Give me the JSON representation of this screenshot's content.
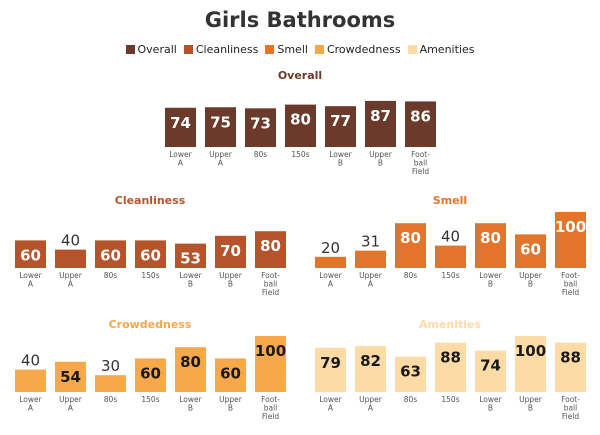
{
  "title": "Girls Bathrooms",
  "legend": [
    {
      "label": "Overall",
      "color": "#6b3a2a"
    },
    {
      "label": "Cleanliness",
      "color": "#b5542a"
    },
    {
      "label": "Smell",
      "color": "#e2752a"
    },
    {
      "label": "Crowdedness",
      "color": "#f6a84b"
    },
    {
      "label": "Amenities",
      "color": "#fddba6"
    }
  ],
  "chart_data": [
    {
      "type": "bar",
      "title": "Overall",
      "title_color": "#6b3a2a",
      "bar_color": "#6b3a2a",
      "label_color": "#ffffff",
      "categories": [
        "Lower A",
        "Upper A",
        "80s",
        "150s",
        "Lower B",
        "Upper B",
        "Football Field"
      ],
      "values": [
        74,
        75,
        73,
        80,
        77,
        87,
        86
      ],
      "ylim": [
        0,
        100
      ]
    },
    {
      "type": "bar",
      "title": "Cleanliness",
      "title_color": "#b5542a",
      "bar_color": "#b5542a",
      "label_color": "#ffffff",
      "categories": [
        "Lower A",
        "Upper A",
        "80s",
        "150s",
        "Lower B",
        "Upper B",
        "Football Field"
      ],
      "values": [
        60,
        40,
        60,
        60,
        53,
        70,
        80
      ],
      "ylim": [
        0,
        100
      ]
    },
    {
      "type": "bar",
      "title": "Smell",
      "title_color": "#e2752a",
      "bar_color": "#e2752a",
      "label_color": "#ffffff",
      "categories": [
        "Lower A",
        "Upper A",
        "80s",
        "150s",
        "Lower B",
        "Upper B",
        "Football Field"
      ],
      "values": [
        20,
        31,
        80,
        40,
        80,
        60,
        100
      ],
      "ylim": [
        0,
        100
      ]
    },
    {
      "type": "bar",
      "title": "Crowdedness",
      "title_color": "#f6a84b",
      "bar_color": "#f6a84b",
      "label_color": "#1a1a1a",
      "categories": [
        "Lower A",
        "Upper A",
        "80s",
        "150s",
        "Lower B",
        "Upper B",
        "Football Field"
      ],
      "values": [
        40,
        54,
        30,
        60,
        80,
        60,
        100
      ],
      "ylim": [
        0,
        100
      ]
    },
    {
      "type": "bar",
      "title": "Amenities",
      "title_color": "#fddba6",
      "bar_color": "#fddba6",
      "label_color": "#1a1a1a",
      "categories": [
        "Lower A",
        "Upper A",
        "80s",
        "150s",
        "Lower B",
        "Upper B",
        "Football Field"
      ],
      "values": [
        79,
        82,
        63,
        88,
        74,
        100,
        88
      ],
      "ylim": [
        0,
        100
      ]
    }
  ]
}
